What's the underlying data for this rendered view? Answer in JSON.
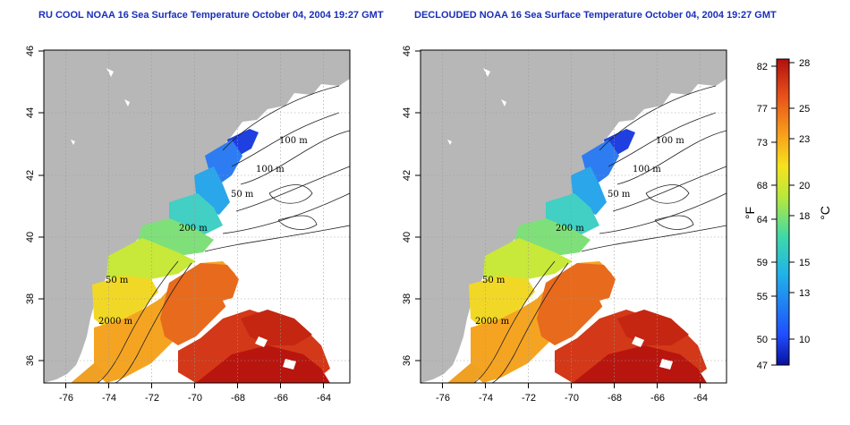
{
  "panels": [
    {
      "title": "RU COOL NOAA 16 Sea Surface Temperature October 04, 2004 19:27 GMT",
      "contour_labels": [
        "100 m",
        "100 m",
        "50 m",
        "200 m",
        "50 m",
        "2000 m"
      ]
    },
    {
      "title": "DECLOUDED NOAA 16 Sea Surface Temperature October 04, 2004 19:27 GMT",
      "contour_labels": [
        "100 m",
        "100 m",
        "50 m",
        "200 m",
        "50 m",
        "2000 m"
      ]
    }
  ],
  "axes": {
    "lon_ticks": [
      "-76",
      "-74",
      "-72",
      "-70",
      "-68",
      "-66",
      "-64"
    ],
    "lat_ticks": [
      "36",
      "38",
      "40",
      "42",
      "44",
      "46"
    ]
  },
  "colorbar": {
    "fahrenheit_ticks": [
      "82",
      "77",
      "73",
      "68",
      "64",
      "59",
      "55",
      "50",
      "47"
    ],
    "celsius_ticks": [
      "28",
      "25",
      "23",
      "20",
      "18",
      "15",
      "13",
      "10"
    ],
    "f_unit": "°F",
    "c_unit": "°C",
    "colors": [
      "#08109e",
      "#1f4fff",
      "#20b4e8",
      "#3fd9a8",
      "#b8e83a",
      "#f6e21e",
      "#f8a21a",
      "#e8501a",
      "#b0100f"
    ]
  }
}
